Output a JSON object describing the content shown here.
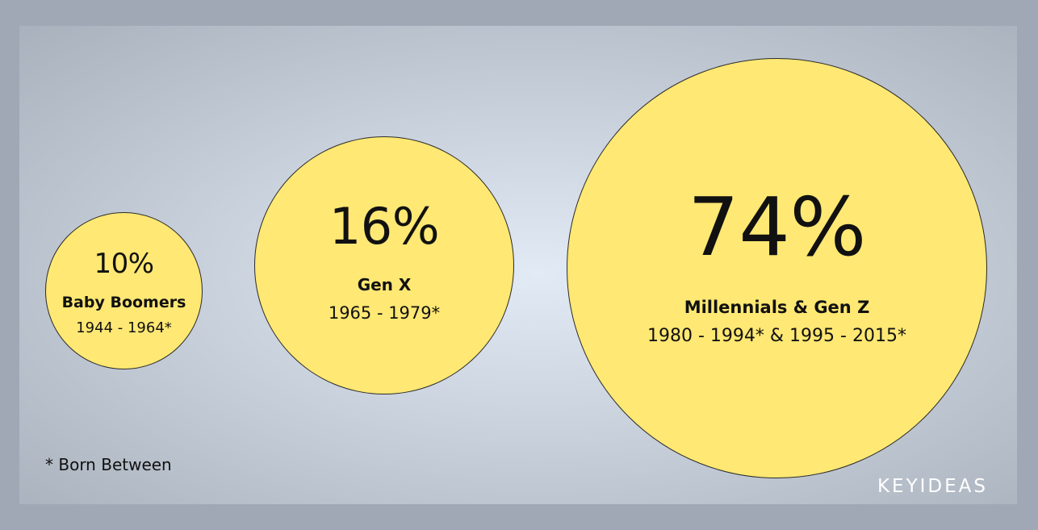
{
  "chart_data": {
    "type": "bubble",
    "categories": [
      "Baby Boomers",
      "Gen X",
      "Millennials & Gen Z"
    ],
    "values": [
      10,
      16,
      74
    ],
    "value_labels": [
      "10%",
      "16%",
      "74%"
    ],
    "years": [
      "1944 - 1964*",
      "1965 - 1979*",
      "1980 - 1994* & 1995 - 2015*"
    ],
    "bubble_color": "#ffe873"
  },
  "footnote": "* Born Between",
  "brand": "KEYIDEAS"
}
